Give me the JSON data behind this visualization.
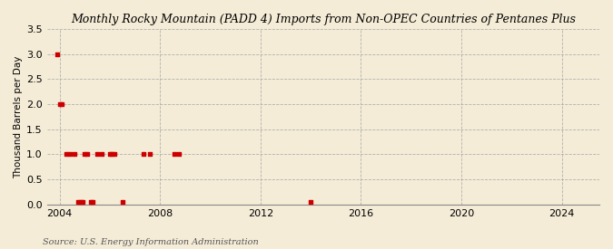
{
  "title": "Monthly Rocky Mountain (PADD 4) Imports from Non-OPEC Countries of Pentanes Plus",
  "ylabel": "Thousand Barrels per Day",
  "source": "Source: U.S. Energy Information Administration",
  "background_color": "#f5ecd7",
  "xlim": [
    2003.5,
    2025.5
  ],
  "ylim": [
    0.0,
    3.5
  ],
  "yticks": [
    0.0,
    0.5,
    1.0,
    1.5,
    2.0,
    2.5,
    3.0,
    3.5
  ],
  "xticks": [
    2004,
    2008,
    2012,
    2016,
    2020,
    2024
  ],
  "data_points": [
    [
      2003.917,
      3.0
    ],
    [
      2004.0,
      2.0
    ],
    [
      2004.083,
      2.0
    ],
    [
      2004.25,
      1.0
    ],
    [
      2004.417,
      1.0
    ],
    [
      2004.583,
      1.0
    ],
    [
      2004.75,
      0.05
    ],
    [
      2004.833,
      0.05
    ],
    [
      2004.917,
      0.05
    ],
    [
      2005.0,
      1.0
    ],
    [
      2005.083,
      1.0
    ],
    [
      2005.25,
      0.05
    ],
    [
      2005.333,
      0.05
    ],
    [
      2005.5,
      1.0
    ],
    [
      2005.667,
      1.0
    ],
    [
      2006.0,
      1.0
    ],
    [
      2006.083,
      1.0
    ],
    [
      2006.167,
      1.0
    ],
    [
      2006.5,
      0.05
    ],
    [
      2007.333,
      1.0
    ],
    [
      2007.583,
      1.0
    ],
    [
      2008.583,
      1.0
    ],
    [
      2008.75,
      1.0
    ],
    [
      2014.0,
      0.05
    ]
  ],
  "marker_color": "#cc0000",
  "marker_size": 3.5
}
